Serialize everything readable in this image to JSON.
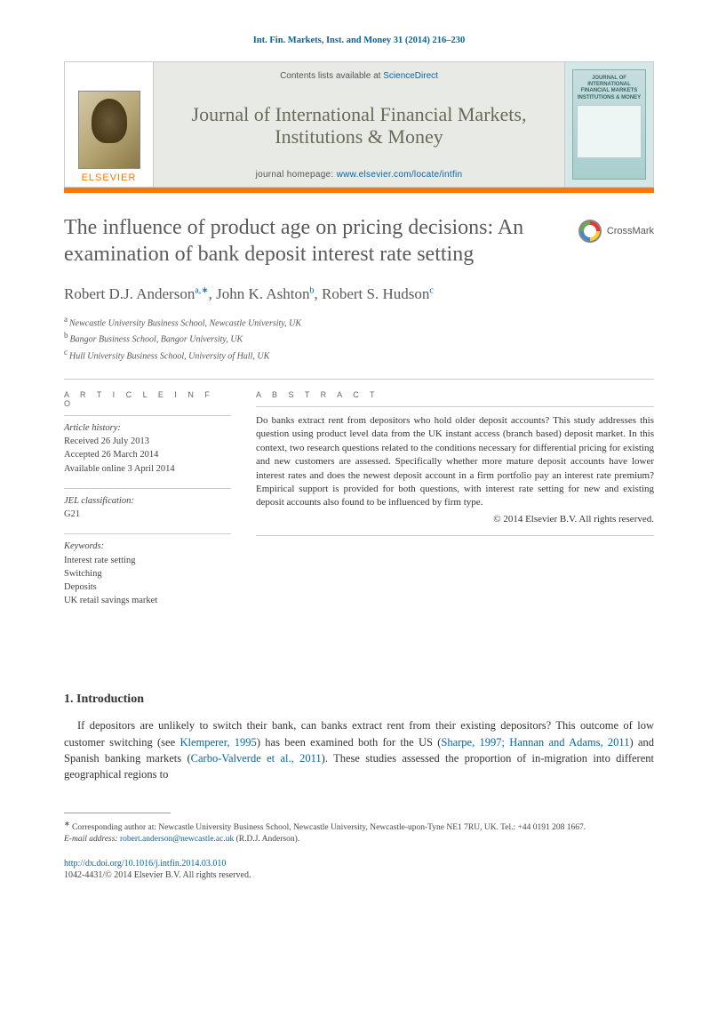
{
  "header": {
    "citation": "Int. Fin. Markets, Inst. and Money 31 (2014) 216–230"
  },
  "banner": {
    "contents_prefix": "Contents lists available at ",
    "contents_link": "ScienceDirect",
    "journal_name": "Journal of International Financial Markets, Institutions & Money",
    "homepage_prefix": "journal homepage: ",
    "homepage_url": "www.elsevier.com/locate/intfin",
    "elsevier_label": "ELSEVIER",
    "cover_title": "JOURNAL OF INTERNATIONAL FINANCIAL MARKETS INSTITUTIONS & MONEY"
  },
  "crossmark": {
    "label": "CrossMark"
  },
  "title": "The influence of product age on pricing decisions: An examination of bank deposit interest rate setting",
  "authors": [
    {
      "name": "Robert D.J. Anderson",
      "aff": "a",
      "corr": true
    },
    {
      "name": "John K. Ashton",
      "aff": "b",
      "corr": false
    },
    {
      "name": "Robert S. Hudson",
      "aff": "c",
      "corr": false
    }
  ],
  "affiliations": [
    {
      "key": "a",
      "text": "Newcastle University Business School, Newcastle University, UK"
    },
    {
      "key": "b",
      "text": "Bangor Business School, Bangor University, UK"
    },
    {
      "key": "c",
      "text": "Hull University Business School, University of Hull, UK"
    }
  ],
  "article_info": {
    "heading": "A R T I C L E  I N F O",
    "history_label": "Article history:",
    "received": "Received 26 July 2013",
    "accepted": "Accepted 26 March 2014",
    "online": "Available online 3 April 2014",
    "jel_label": "JEL classification:",
    "jel_code": "G21",
    "keywords_label": "Keywords:",
    "keywords": [
      "Interest rate setting",
      "Switching",
      "Deposits",
      "UK retail savings market"
    ]
  },
  "abstract": {
    "heading": "A B S T R A C T",
    "body": "Do banks extract rent from depositors who hold older deposit accounts? This study addresses this question using product level data from the UK instant access (branch based) deposit market. In this context, two research questions related to the conditions necessary for differential pricing for existing and new customers are assessed. Specifically whether more mature deposit accounts have lower interest rates and does the newest deposit account in a firm portfolio pay an interest rate premium? Empirical support is provided for both questions, with interest rate setting for new and existing deposit accounts also found to be influenced by firm type.",
    "copyright": "© 2014 Elsevier B.V. All rights reserved."
  },
  "section1": {
    "heading": "1.  Introduction",
    "text_parts": {
      "p1": "If depositors are unlikely to switch their bank, can banks extract rent from their existing depositors? This outcome of low customer switching (see ",
      "cite1": "Klemperer, 1995",
      "p2": ") has been examined both for the US (",
      "cite2": "Sharpe, 1997; Hannan and Adams, 2011",
      "p3": ") and Spanish banking markets (",
      "cite3": "Carbo-Valverde et al., 2011",
      "p4": "). These studies assessed the proportion of in-migration into different geographical regions to"
    }
  },
  "footnote": {
    "corr_marker": "∗",
    "corr_text": "Corresponding author at: Newcastle University Business School, Newcastle University, Newcastle-upon-Tyne NE1 7RU, UK. Tel.: +44 0191 208 1667.",
    "email_label": "E-mail address:",
    "email": "robert.anderson@newcastle.ac.uk",
    "email_suffix": " (R.D.J. Anderson)."
  },
  "footer": {
    "doi_url": "http://dx.doi.org/10.1016/j.intfin.2014.03.010",
    "issn_copyright": "1042-4431/© 2014 Elsevier B.V. All rights reserved."
  },
  "colors": {
    "link": "#0066aa",
    "accent": "#ff7700",
    "title_grey": "#5a5a5a",
    "banner_bg": "#e8eae5",
    "journal_name": "#6a6a58"
  }
}
